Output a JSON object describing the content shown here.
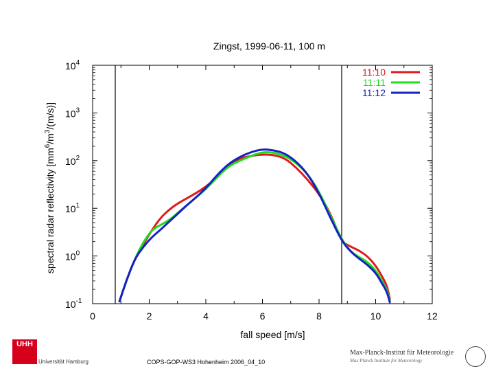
{
  "chart_data": {
    "type": "line",
    "title": "Zingst, 1999-06-11, 100 m",
    "xlabel": "fall speed [m/s]",
    "ylabel_base": "spectral radar reflectivity [mm",
    "ylabel_parts": [
      "spectral radar reflectivity [mm",
      "6",
      "/m",
      "3",
      "/(m/s)]"
    ],
    "xlim": [
      0,
      12
    ],
    "ylim_log10": [
      -1,
      4
    ],
    "yscale": "log",
    "x_ticks": [
      0,
      2,
      4,
      6,
      8,
      10,
      12
    ],
    "x_tick_labels": [
      "0",
      "2",
      "4",
      "6",
      "8",
      "10",
      "12"
    ],
    "y_ticks": [
      {
        "base": "10",
        "exp": "-1",
        "log": -1
      },
      {
        "base": "10",
        "exp": "0",
        "log": 0
      },
      {
        "base": "10",
        "exp": "1",
        "log": 1
      },
      {
        "base": "10",
        "exp": "2",
        "log": 2
      },
      {
        "base": "10",
        "exp": "3",
        "log": 3
      },
      {
        "base": "10",
        "exp": "4",
        "log": 4
      }
    ],
    "vertical_lines": [
      0.8,
      8.8
    ],
    "legend_position": "top-right",
    "series": [
      {
        "name": "11:10",
        "color": "#e0191b",
        "x": [
          0.95,
          1.2,
          1.5,
          1.8,
          2.1,
          2.4,
          2.7,
          3.0,
          3.3,
          3.6,
          4.0,
          4.4,
          4.8,
          5.2,
          5.6,
          6.0,
          6.4,
          6.8,
          7.2,
          7.6,
          8.0,
          8.4,
          8.8,
          9.1,
          9.4,
          9.7,
          10.0,
          10.2,
          10.4,
          10.5
        ],
        "log10_y": [
          -0.95,
          -0.5,
          -0.05,
          0.25,
          0.55,
          0.8,
          0.97,
          1.1,
          1.2,
          1.3,
          1.45,
          1.65,
          1.9,
          2.05,
          2.1,
          2.13,
          2.12,
          2.05,
          1.85,
          1.6,
          1.3,
          0.9,
          0.3,
          0.2,
          0.12,
          0.0,
          -0.2,
          -0.4,
          -0.62,
          -0.9
        ]
      },
      {
        "name": "11:11",
        "color": "#1ddc1d",
        "x": [
          0.95,
          1.2,
          1.5,
          1.8,
          2.1,
          2.4,
          2.7,
          3.0,
          3.3,
          3.6,
          4.0,
          4.4,
          4.8,
          5.2,
          5.6,
          6.0,
          6.4,
          6.8,
          7.2,
          7.6,
          8.0,
          8.4,
          8.8,
          9.1,
          9.4,
          9.7,
          10.0,
          10.2,
          10.4,
          10.5
        ],
        "log10_y": [
          -0.95,
          -0.5,
          -0.05,
          0.3,
          0.55,
          0.65,
          0.75,
          0.9,
          1.05,
          1.2,
          1.4,
          1.65,
          1.88,
          2.0,
          2.1,
          2.18,
          2.17,
          2.1,
          1.95,
          1.72,
          1.35,
          0.85,
          0.35,
          0.1,
          -0.02,
          -0.12,
          -0.3,
          -0.5,
          -0.7,
          -0.95
        ]
      },
      {
        "name": "11:12",
        "color": "#1521c4",
        "x": [
          0.95,
          1.2,
          1.5,
          1.8,
          2.1,
          2.4,
          2.7,
          3.0,
          3.3,
          3.6,
          4.0,
          4.4,
          4.8,
          5.2,
          5.6,
          6.0,
          6.4,
          6.8,
          7.2,
          7.6,
          8.0,
          8.4,
          8.8,
          9.1,
          9.4,
          9.7,
          10.0,
          10.2,
          10.4,
          10.5
        ],
        "log10_y": [
          -0.95,
          -0.5,
          -0.05,
          0.2,
          0.4,
          0.55,
          0.72,
          0.88,
          1.05,
          1.2,
          1.42,
          1.7,
          1.93,
          2.08,
          2.18,
          2.24,
          2.22,
          2.15,
          1.98,
          1.72,
          1.32,
          0.8,
          0.32,
          0.1,
          -0.05,
          -0.18,
          -0.35,
          -0.55,
          -0.75,
          -0.97
        ]
      }
    ]
  },
  "footer": {
    "university": "Universität Hamburg",
    "uhh_logo": "UHH",
    "citation": "COPS-GOP-WS3 Hohenheim 2006_04_10",
    "institute": "Max-Planck-Institut für Meteorologie",
    "institute_sub": "Max Planck Institute for Meteorology"
  }
}
